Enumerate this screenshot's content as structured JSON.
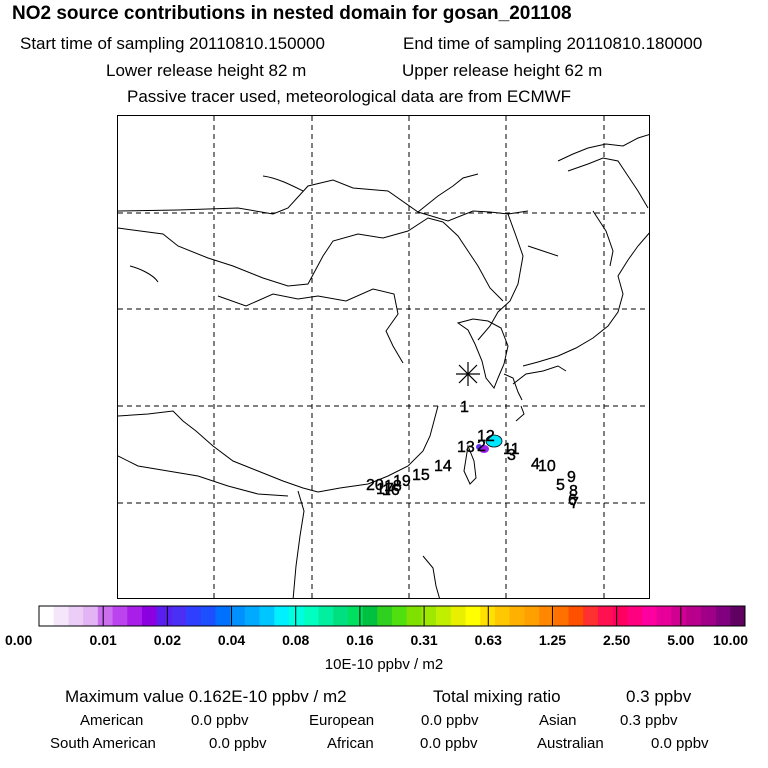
{
  "header": {
    "title": "NO2 source contributions in nested domain for gosan_201108",
    "start_label": "Start time of sampling 20110810.150000",
    "end_label": "End time of sampling 20110810.180000",
    "lower_label": "Lower release height   82 m",
    "upper_label": "Upper release height   62 m",
    "note": "Passive tracer used, meteorological data are from ECMWF"
  },
  "map": {
    "receptor_marker": "asterisk-icon",
    "labels": [
      "1",
      "2",
      "3",
      "4",
      "5",
      "6",
      "7",
      "8",
      "9",
      "10",
      "11",
      "12",
      "13",
      "14",
      "15",
      "16",
      "17",
      "18",
      "19",
      "20"
    ]
  },
  "colorbar": {
    "ticks": [
      "0.00",
      "0.01",
      "0.02",
      "0.04",
      "0.08",
      "0.16",
      "0.31",
      "0.63",
      "1.25",
      "2.50",
      "5.00",
      "10.00"
    ],
    "unit": "10E-10 ppbv / m2",
    "colors": [
      "#ffffff",
      "#f6e6fb",
      "#eccdf7",
      "#e2b4f3",
      "#cc6ef0",
      "#bb44ee",
      "#a91fe9",
      "#8b00e0",
      "#5a1ef0",
      "#4a2ff5",
      "#2e3fff",
      "#1c50ff",
      "#0070ff",
      "#0090ff",
      "#00aaff",
      "#00c6ff",
      "#00f0ff",
      "#00ffe0",
      "#00ffc0",
      "#00f0a0",
      "#00e080",
      "#00e060",
      "#00c040",
      "#30d020",
      "#50e010",
      "#80e000",
      "#a0e800",
      "#c0f000",
      "#e8f000",
      "#ffff00",
      "#ffe000",
      "#ffc800",
      "#ffb000",
      "#ffa000",
      "#ff8800",
      "#ff7000",
      "#ff5000",
      "#ff3030",
      "#ff1050",
      "#ff0060",
      "#ff0080",
      "#ff00a0",
      "#e8009a",
      "#d00090",
      "#b8008c",
      "#a00088",
      "#800080",
      "#600060"
    ]
  },
  "summary": {
    "max_label": "Maximum value  0.162E-10 ppbv / m2",
    "total_label": "Total mixing ratio",
    "total_value": "0.3 ppbv",
    "american_label": "American",
    "american_value": "0.0 ppbv",
    "european_label": "European",
    "european_value": "0.0 ppbv",
    "asian_label": "Asian",
    "asian_value": "0.3 ppbv",
    "south_american_label": "South American",
    "south_american_value": "0.0 ppbv",
    "african_label": "African",
    "african_value": "0.0 ppbv",
    "australian_label": "Australian",
    "australian_value": "0.0 ppbv"
  }
}
